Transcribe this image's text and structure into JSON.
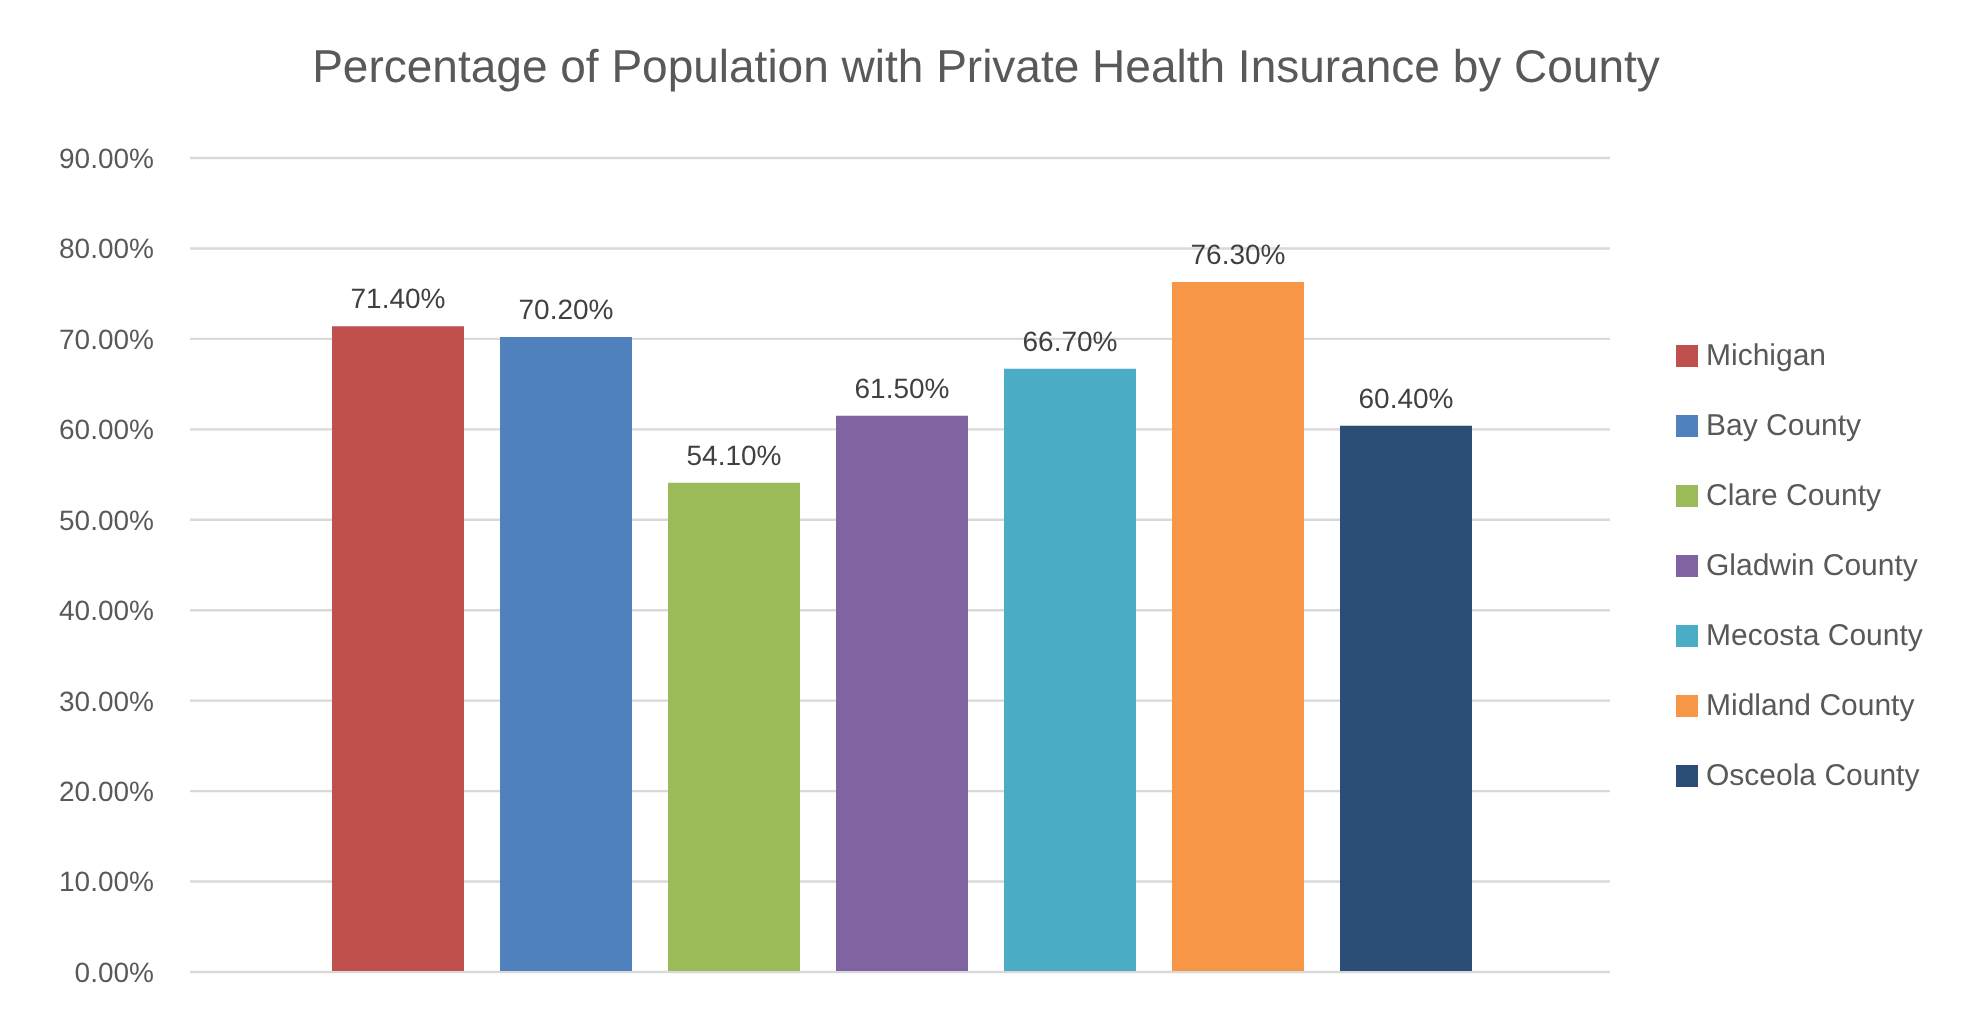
{
  "chart_data": {
    "type": "bar",
    "title": "Percentage of Population with Private Health Insurance by County",
    "categories": [
      null
    ],
    "series": [
      {
        "name": "Michigan",
        "color": "#c0504d",
        "values": [
          71.4
        ],
        "value_labels": [
          "71.40%"
        ]
      },
      {
        "name": "Bay County",
        "color": "#4f81bd",
        "values": [
          70.2
        ],
        "value_labels": [
          "70.20%"
        ]
      },
      {
        "name": "Clare County",
        "color": "#9bbb59",
        "values": [
          54.1
        ],
        "value_labels": [
          "54.10%"
        ]
      },
      {
        "name": "Gladwin County",
        "color": "#8064a2",
        "values": [
          61.5
        ],
        "value_labels": [
          "61.50%"
        ]
      },
      {
        "name": "Mecosta County",
        "color": "#4bacc6",
        "values": [
          66.7
        ],
        "value_labels": [
          "66.70%"
        ]
      },
      {
        "name": "Midland County",
        "color": "#f79646",
        "values": [
          76.3
        ],
        "value_labels": [
          "76.30%"
        ]
      },
      {
        "name": "Osceola County",
        "color": "#2c4d75",
        "values": [
          60.4
        ],
        "value_labels": [
          "60.40%"
        ]
      }
    ],
    "ylim": [
      0,
      90
    ],
    "yticks": [
      {
        "value": 0,
        "label": "0.00%"
      },
      {
        "value": 10,
        "label": "10.00%"
      },
      {
        "value": 20,
        "label": "20.00%"
      },
      {
        "value": 30,
        "label": "30.00%"
      },
      {
        "value": 40,
        "label": "40.00%"
      },
      {
        "value": 50,
        "label": "50.00%"
      },
      {
        "value": 60,
        "label": "60.00%"
      },
      {
        "value": 70,
        "label": "70.00%"
      },
      {
        "value": 80,
        "label": "80.00%"
      },
      {
        "value": 90,
        "label": "90.00%"
      }
    ],
    "grid": "y",
    "legend": "right"
  }
}
